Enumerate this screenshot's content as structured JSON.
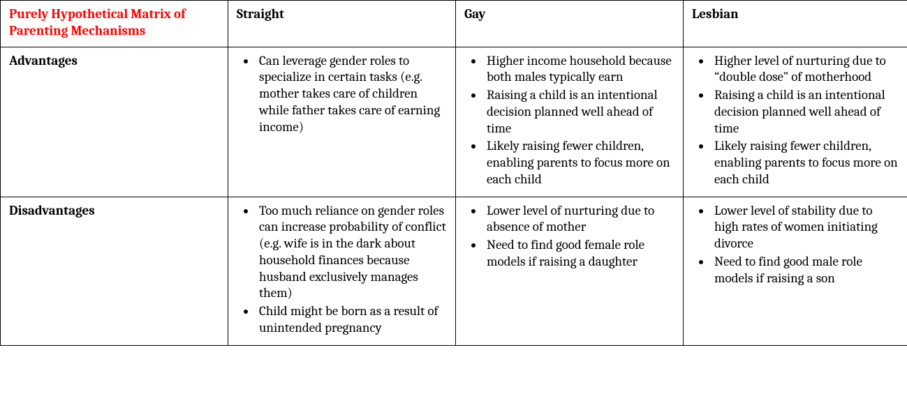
{
  "table": {
    "title_color": "#ff0000",
    "border_color": "#000000",
    "background_color": "#ffffff",
    "font_size_pt": 14,
    "corner_title": "Purely Hypothetical Matrix of Parenting Mechanisms",
    "columns": [
      "Straight",
      "Gay",
      "Lesbian"
    ],
    "rows": [
      {
        "label": "Advantages",
        "cells": [
          [
            "Can leverage gender roles to specialize in certain tasks (e.g. mother takes care of children while father takes care of earning income)"
          ],
          [
            "Higher income household because both males typically earn",
            "Raising a child is an intentional decision planned well ahead of time",
            "Likely raising fewer children, enabling parents to focus more on each child"
          ],
          [
            "Higher level of nurturing due to “double dose” of motherhood",
            "Raising a child is an intentional decision planned well ahead of time",
            "Likely raising fewer children, enabling parents to focus more on each child"
          ]
        ]
      },
      {
        "label": "Disadvantages",
        "cells": [
          [
            "Too much reliance on gender roles can increase probability of conflict (e.g. wife is in the dark about household finances because husband exclusively manages them)",
            "Child might be born as a result of unintended pregnancy"
          ],
          [
            "Lower level of nurturing due to absence of mother",
            "Need to find good female role models if raising a daughter"
          ],
          [
            "Lower level of stability due to high rates of women initiating divorce",
            "Need to find good male role models if raising a son"
          ]
        ]
      }
    ]
  }
}
